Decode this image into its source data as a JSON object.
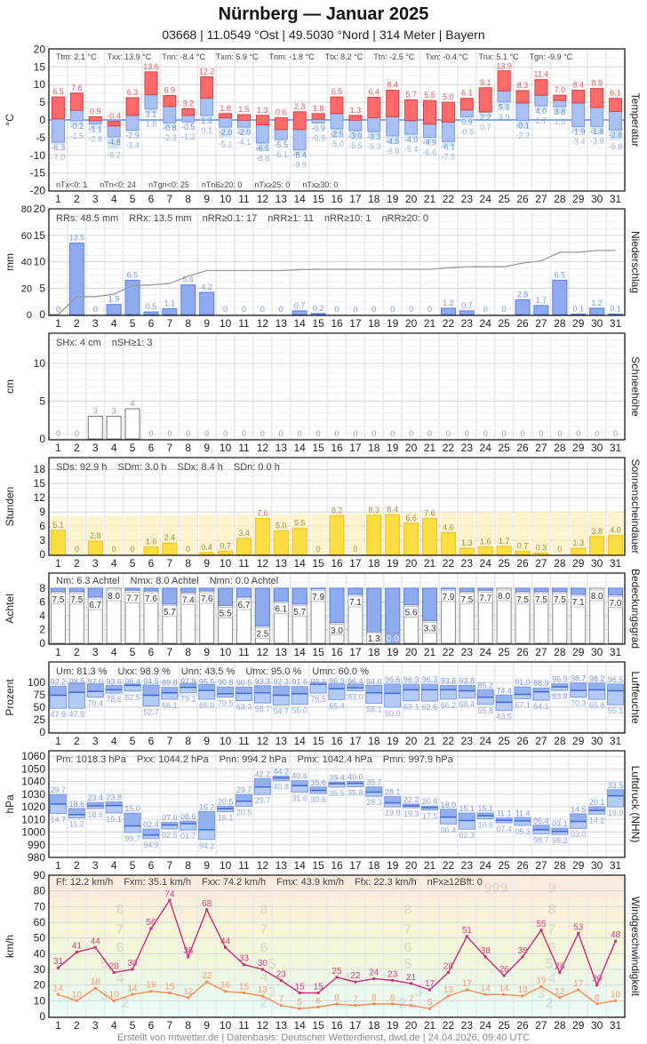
{
  "header": {
    "title": "Nürnberg  —  Januar 2025",
    "subtitle": "03668  |  11.0549 °Ost  |  49.5030 °Nord  |  314 Meter  |  Bayern"
  },
  "footer": "Erstellt von mtwetter.de | Datenbasis: Deutscher Wetterdienst, dwd.de | 24.04.2026, 09:40 UTC",
  "colors": {
    "tmax": "#ff6b6b",
    "tmin": "#a9c1f2",
    "precip": "#8eabf0",
    "sun": "#ffdd44",
    "gust": "#d02a7a",
    "wind": "#ff8a50"
  },
  "days": [
    1,
    2,
    3,
    4,
    5,
    6,
    7,
    8,
    9,
    10,
    11,
    12,
    13,
    14,
    15,
    16,
    17,
    18,
    19,
    20,
    21,
    22,
    23,
    24,
    25,
    26,
    27,
    28,
    29,
    30,
    31
  ],
  "chart_data": [
    {
      "id": "temp",
      "type": "bar",
      "title": "Temperatur",
      "ylabel": "°C",
      "ylim": [
        -20,
        20
      ],
      "yticks": [
        20,
        15,
        10,
        5,
        0,
        -5,
        -10,
        -15,
        -20
      ],
      "stats": [
        "Ttm: 2.1 °C",
        "Txx: 13.9 °C",
        "Tnn: -8.4 °C",
        "Txm: 5.9 °C",
        "Tnm: -1.8 °C",
        "Ttx: 8.2 °C",
        "Ttn: -2.5 °C",
        "Txn: -0.4 °C",
        "Tnx: 5.1 °C",
        "Tgn: -9.9 °C"
      ],
      "stats_bottom": [
        "nTx<0: 1",
        "nTn<0: 24",
        "nTgn<0: 25",
        "nTn6≥20: 0",
        "nTx≥25: 0",
        "nTx≥30: 0"
      ],
      "series": {
        "tmax": [
          6.5,
          7.6,
          0.9,
          -0.4,
          6.3,
          13.6,
          6.9,
          3.2,
          12.2,
          1.8,
          1.5,
          1.3,
          0.6,
          2.3,
          1.8,
          6.5,
          1.3,
          6.4,
          8.4,
          5.7,
          5.5,
          5.0,
          6.1,
          9.1,
          13.9,
          8.3,
          11.4,
          7.0,
          8.4,
          8.9,
          6.1
        ],
        "tmean": [
          0.3,
          2.7,
          -0.2,
          -1.7,
          1.3,
          7.1,
          3.8,
          1.3,
          6.2,
          0.6,
          -0.1,
          -1.4,
          -2.7,
          -2.7,
          0.2,
          1.8,
          -0.1,
          0.6,
          0.9,
          -0.2,
          -1.2,
          -0.6,
          2.8,
          2.3,
          8.2,
          4.8,
          7.0,
          5.5,
          4.8,
          3.5,
          2.4
        ],
        "tmin": [
          -6.3,
          -0.2,
          -1.1,
          -4.8,
          -2.9,
          3.1,
          -0.8,
          -0.5,
          1.3,
          -2.0,
          -2.0,
          -6.5,
          -5.5,
          -8.4,
          -0.9,
          -2.5,
          -3.0,
          -3.3,
          -4.5,
          -4.0,
          -4.9,
          -6.1,
          0.9,
          2.2,
          5.1,
          -0.1,
          4.0,
          3.8,
          -1.9,
          -1.8,
          -2.8
        ],
        "tgmin": [
          -7.0,
          -1.5,
          -2.8,
          -8.2,
          -3.4,
          1.8,
          -2.3,
          -1.2,
          0.1,
          -5.1,
          -4.1,
          -8.8,
          -6.1,
          -9.9,
          -0.9,
          -5.0,
          -5.5,
          -5.3,
          -6.8,
          -5.4,
          -6.6,
          -7.5,
          -0.6,
          0.7,
          3.0,
          -2.3,
          2.7,
          1.9,
          -3.4,
          -3.9,
          -5.8
        ]
      }
    },
    {
      "id": "precip",
      "type": "bar",
      "title": "Niederschlag",
      "ylabel": "mm",
      "ylim": [
        0,
        20
      ],
      "ylim_cumulative": [
        0,
        80
      ],
      "yticks": [
        20,
        15,
        10,
        5,
        0
      ],
      "yticks_cumulative": [
        80,
        60,
        40,
        20,
        0
      ],
      "stats": [
        "RRs: 48.5 mm",
        "RRx: 13.5 mm",
        "nRR≥0.1: 17",
        "nRR≥1: 11",
        "nRR≥10: 1",
        "nRR≥20: 0"
      ],
      "values": [
        0,
        13.5,
        0,
        1.9,
        6.5,
        0.5,
        1.1,
        5.6,
        4.2,
        0,
        0,
        0,
        0,
        0.7,
        0.2,
        0,
        0,
        0,
        0,
        0,
        0,
        1.2,
        0.7,
        0,
        0,
        2.8,
        1.7,
        6.5,
        0.1,
        1.2,
        0.1
      ]
    },
    {
      "id": "snow",
      "type": "bar",
      "title": "Schneehöhe",
      "ylabel": "cm",
      "ylim": [
        0,
        14
      ],
      "yticks": [
        10,
        5,
        0
      ],
      "stats": [
        "SHx: 4 cm",
        "nSH≥1: 3"
      ],
      "values": [
        0,
        0,
        3,
        3,
        4,
        0,
        0,
        0,
        0,
        0,
        0,
        0,
        0,
        0,
        0,
        0,
        0,
        0,
        0,
        0,
        0,
        0,
        0,
        0,
        0,
        0,
        0,
        0,
        0,
        0,
        0
      ]
    },
    {
      "id": "sun",
      "type": "bar",
      "title": "Sonnenscheindauer",
      "ylabel": "Stunden",
      "ylim": [
        0,
        20
      ],
      "yticks": [
        18,
        15,
        12,
        9,
        6,
        3,
        0
      ],
      "stats": [
        "SDs: 92.9 h",
        "SDm: 3.0 h",
        "SDx: 8.4 h",
        "SDn: 0.0 h"
      ],
      "values": [
        5.1,
        0,
        2.8,
        0,
        0,
        1.6,
        2.4,
        0,
        0.4,
        0.7,
        3.4,
        7.6,
        5.0,
        5.5,
        0,
        8.2,
        0,
        8.3,
        8.4,
        6.6,
        7.6,
        4.6,
        1.3,
        1.6,
        1.7,
        0.7,
        0.3,
        0,
        1.3,
        3.8,
        4.0
      ]
    },
    {
      "id": "cloud",
      "type": "bar",
      "title": "Bedeckungsgrad",
      "ylabel": "Achtel",
      "ylim": [
        0,
        8
      ],
      "yticks": [
        8,
        6,
        4,
        2,
        0
      ],
      "stats": [
        "Nm: 6.3 Achtel",
        "Nmx: 8.0 Achtel",
        "Nmn: 0.0 Achtel"
      ],
      "values": [
        7.5,
        7.5,
        6.7,
        8.0,
        7.7,
        7.6,
        5.7,
        7.4,
        7.6,
        5.5,
        6.7,
        2.5,
        6.1,
        5.7,
        7.9,
        3.0,
        7.1,
        1.3,
        0.0,
        5.6,
        3.3,
        7.9,
        7.5,
        7.7,
        8.0,
        7.5,
        7.5,
        7.5,
        7.1,
        8.0,
        7.0
      ]
    },
    {
      "id": "humidity",
      "type": "bar",
      "title": "Luftfeuchte",
      "ylabel": "Prozent",
      "ylim": [
        0,
        100
      ],
      "yticks": [
        100,
        75,
        50,
        25,
        0
      ],
      "stats": [
        "Um: 81.3 %",
        "Uxx: 98.9 %",
        "Unn: 43.5 %",
        "Umx: 95.0 %",
        "Umn: 60.0 %"
      ],
      "series": {
        "max": [
          92.2,
          98.5,
          97.0,
          93.6,
          96.4,
          94.5,
          89.8,
          97.9,
          95.5,
          90.8,
          90.5,
          93.3,
          92.3,
          91.6,
          98.9,
          96.9,
          96.4,
          94.0,
          96.6,
          96.3,
          96.3,
          93.8,
          93.8,
          85.2,
          74.4,
          91.0,
          88.9,
          96.9,
          98.7,
          98.2,
          96.5
        ],
        "mean": [
          74,
          80,
          82,
          85,
          94,
          74,
          79,
          90,
          84,
          77,
          78,
          79,
          74,
          77,
          96,
          87,
          89,
          79,
          78,
          85,
          85,
          85,
          83,
          70,
          60,
          76,
          81,
          91,
          84,
          85,
          83
        ],
        "min": [
          47.9,
          47.9,
          70.4,
          78.6,
          82.5,
          52.7,
          66.1,
          79.1,
          66.0,
          70.5,
          63.3,
          58.7,
          54.7,
          56.0,
          78.5,
          65.4,
          83.0,
          58.1,
          50.0,
          63.1,
          62.6,
          66.2,
          68.4,
          55.8,
          43.5,
          67.1,
          64.1,
          83.8,
          70.3,
          65.8,
          55.1
        ]
      }
    },
    {
      "id": "pressure",
      "type": "bar",
      "title": "Luftdruck (NHN)",
      "ylabel": "hPa",
      "ylim": [
        980,
        1060
      ],
      "yticks": [
        1060,
        1050,
        1040,
        1030,
        1020,
        1010,
        1000,
        990,
        980
      ],
      "stats": [
        "Pm: 1018.3 hPa",
        "Pxx: 1044.2 hPa",
        "Pnn: 994.2 hPa",
        "Pmx: 1042.4 hPa",
        "Pmn: 997.9 hPa"
      ],
      "series": {
        "max": [
          1029.7,
          1018.6,
          1023.4,
          1023.8,
          1015.0,
          1002.4,
          1007.6,
          1008.6,
          1016.2,
          1020.5,
          1029.7,
          1042.2,
          1044.2,
          1040.6,
          1035.6,
          1039.4,
          1040.0,
          1035.7,
          1028.1,
          1022.2,
          1020.6,
          1018.0,
          1015.1,
          1015.1,
          1011.1,
          1011.4,
          1005.4,
          1003.1,
          1014.5,
          1020.1,
          1033.5
        ],
        "mean": [
          1022.2,
          1013.8,
          1020.7,
          1021.0,
          1004.9,
          997.6,
          1005.6,
          1006.7,
          1001.8,
          1018.4,
          1024.4,
          1035.6,
          1042.7,
          1036.7,
          1032.9,
          1038.2,
          1038.4,
          1031.6,
          1023.1,
          1020.7,
          1019.3,
          1011.8,
          1009.1,
          1012.9,
          1009.3,
          1008.9,
          1001.8,
          1000.4,
          1008.4,
          1017.1,
          1028.7
        ],
        "min": [
          1014.7,
          1011.2,
          1018.6,
          1015.1,
          999.7,
          994.9,
          1002.5,
          1001.7,
          994.2,
          1016.1,
          1020.5,
          1029.7,
          1040.8,
          1031.6,
          1030.6,
          1035.5,
          1035.8,
          1028.3,
          1019.9,
          1019.3,
          1017.5,
          1006.4,
          1002.3,
          1010.6,
          1007.4,
          1005.3,
          998.7,
          998.2,
          1003.0,
          1014.2,
          1019.9
        ]
      }
    },
    {
      "id": "wind",
      "type": "line",
      "title": "Windgeschwindigkeit",
      "ylabel": "km/h",
      "ylim": [
        0,
        90
      ],
      "yticks": [
        90,
        80,
        70,
        60,
        50,
        40,
        30,
        20,
        10,
        0
      ],
      "stats": [
        "Ff: 12.2 km/h",
        "Fxm: 35.1 km/h",
        "Fxx: 74.2 km/h",
        "Fmx: 43.9 km/h",
        "Ffx: 22.3 km/h",
        "nFx≥12Bft: 0"
      ],
      "beaufort_bands": [
        {
          "bft": 0,
          "from": 0,
          "to": 1,
          "color": "#f2fdfd"
        },
        {
          "bft": 1,
          "from": 1,
          "to": 6,
          "color": "#ecfcfb"
        },
        {
          "bft": 2,
          "from": 6,
          "to": 12,
          "color": "#e8fbf4"
        },
        {
          "bft": 3,
          "from": 12,
          "to": 20,
          "color": "#e8faec"
        },
        {
          "bft": 4,
          "from": 20,
          "to": 29,
          "color": "#ebf9e2"
        },
        {
          "bft": 5,
          "from": 29,
          "to": 39,
          "color": "#eff8d9"
        },
        {
          "bft": 6,
          "from": 39,
          "to": 50,
          "color": "#f3f7d3"
        },
        {
          "bft": 7,
          "from": 50,
          "to": 62,
          "color": "#f8f5d2"
        },
        {
          "bft": 8,
          "from": 62,
          "to": 75,
          "color": "#fbf1d6"
        },
        {
          "bft": 9,
          "from": 75,
          "to": 90,
          "color": "#fcebdc"
        }
      ],
      "series": {
        "gust": [
          31,
          41,
          44,
          28,
          30,
          56,
          74,
          38,
          68,
          44,
          33,
          30,
          23,
          15,
          15,
          25,
          22,
          24,
          23,
          21,
          17,
          28,
          51,
          38,
          26,
          38,
          55,
          28,
          53,
          20,
          48
        ],
        "mean": [
          14,
          10,
          18,
          10,
          14,
          16,
          15,
          12,
          22,
          16,
          15,
          13,
          7,
          5,
          6,
          8,
          7,
          8,
          8,
          7,
          5,
          13,
          17,
          14,
          14,
          13,
          19,
          12,
          17,
          8,
          10
        ]
      }
    }
  ]
}
